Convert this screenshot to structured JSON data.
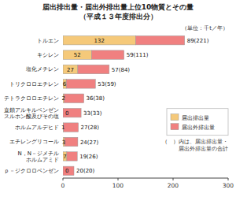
{
  "chart_data": {
    "type": "bar",
    "orientation": "horizontal",
    "stacked": true,
    "title": "届出排出量・届出外排出量上位10物質とその量",
    "subtitle": "（平成１３年度排出分）",
    "annotations": [
      "（単位：千t／年）",
      "（　）内は、届出排出量・",
      "届出外排出量の合計"
    ],
    "categories": [
      "トルエン",
      "キシレン",
      "塩化メチレン",
      "トリクロロエチレン",
      "テトラクロロエチレン",
      "直鎖アルキルベンゼン\nスルホン酸及びその塩",
      "ホルムアルデヒド",
      "エチレングリコール",
      "N，N－ジメチル\nホルムアミド",
      "ｐ－ジクロロベンゼン"
    ],
    "series": [
      {
        "name": "届出排出量",
        "color": "#F5C97A",
        "data_labels": true,
        "values": [
          132,
          52,
          27,
          6,
          2,
          0,
          1,
          3,
          7,
          0
        ]
      },
      {
        "name": "届出外排出量",
        "color": "#F08080",
        "data_labels": true,
        "values": [
          89,
          59,
          57,
          53,
          36,
          33,
          27,
          24,
          19,
          20
        ],
        "value_labels": [
          "89(221)",
          "59(111)",
          "57(84)",
          "53(59)",
          "36(38)",
          "33(33)",
          "27(28)",
          "24(27)",
          "19(26)",
          "20(20)"
        ]
      }
    ],
    "xlim": [
      0,
      300
    ],
    "xticks": [
      0,
      100,
      200,
      300
    ],
    "grid": false,
    "legend": "lower right"
  }
}
